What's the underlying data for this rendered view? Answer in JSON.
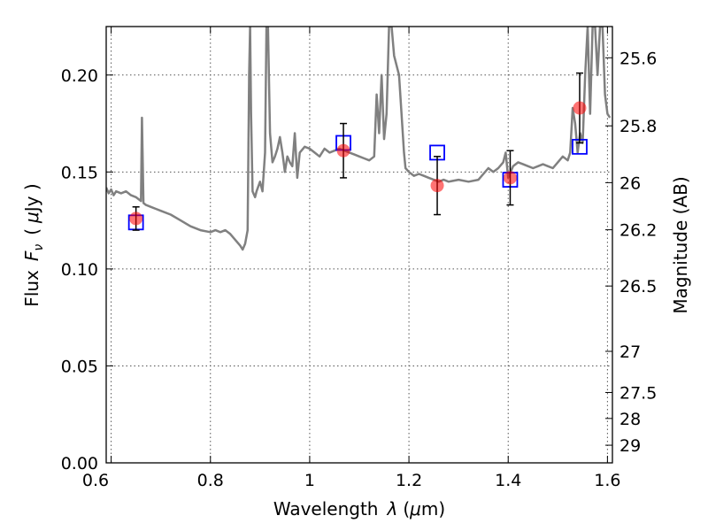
{
  "chart_data": {
    "type": "line",
    "xlabel": "Wavelength",
    "xlabel_symbol": "λ",
    "xlabel_unit_open": "(",
    "xlabel_unit_mu": "μ",
    "xlabel_unit_rest": "m)",
    "ylabel": "Flux",
    "ylabel_symbol": "F",
    "ylabel_subscript": "ν",
    "ylabel_unit_open": "(",
    "ylabel_unit_mu": "μ",
    "ylabel_unit_rest": "Jy )",
    "y2label": "Magnitude (AB)",
    "xlim": [
      0.59,
      1.61
    ],
    "ylim": [
      0.0,
      0.225
    ],
    "grid": true,
    "x_ticks": [
      {
        "value": 0.6,
        "label": ""
      },
      {
        "value": 0.8,
        "label": "0.8"
      },
      {
        "value": 1.0,
        "label": "1"
      },
      {
        "value": 1.2,
        "label": "1.2"
      },
      {
        "value": 1.4,
        "label": "1.4"
      },
      {
        "value": 1.6,
        "label": "1.6"
      }
    ],
    "x_tick_label_left": "0.6",
    "y_ticks": [
      {
        "value": 0.0,
        "label": "0.00"
      },
      {
        "value": 0.05,
        "label": "0.05"
      },
      {
        "value": 0.1,
        "label": "0.10"
      },
      {
        "value": 0.15,
        "label": "0.15"
      },
      {
        "value": 0.2,
        "label": "0.20"
      }
    ],
    "y2_ticks": [
      {
        "label": "25.6",
        "flux": 0.2089
      },
      {
        "label": "25.8",
        "flux": 0.1738
      },
      {
        "label": "26",
        "flux": 0.1445
      },
      {
        "label": "26.2",
        "flux": 0.1202
      },
      {
        "label": "26.5",
        "flux": 0.0912
      },
      {
        "label": "27",
        "flux": 0.0575
      },
      {
        "label": "27.5",
        "flux": 0.0363
      },
      {
        "label": "28",
        "flux": 0.0229
      },
      {
        "label": "29",
        "flux": 0.0091
      }
    ],
    "series": [
      {
        "type": "line",
        "color": "#808080",
        "x": [
          0.59,
          0.595,
          0.6,
          0.605,
          0.61,
          0.62,
          0.63,
          0.64,
          0.65,
          0.655,
          0.66,
          0.662,
          0.665,
          0.67,
          0.68,
          0.69,
          0.7,
          0.72,
          0.74,
          0.76,
          0.78,
          0.8,
          0.81,
          0.82,
          0.83,
          0.84,
          0.86,
          0.865,
          0.87,
          0.875,
          0.878,
          0.88,
          0.882,
          0.885,
          0.89,
          0.893,
          0.9,
          0.905,
          0.91,
          0.913,
          0.916,
          0.92,
          0.925,
          0.93,
          0.935,
          0.94,
          0.945,
          0.95,
          0.955,
          0.96,
          0.965,
          0.97,
          0.975,
          0.98,
          0.99,
          1.0,
          1.01,
          1.02,
          1.03,
          1.04,
          1.05,
          1.06,
          1.07,
          1.08,
          1.09,
          1.1,
          1.11,
          1.12,
          1.13,
          1.135,
          1.14,
          1.145,
          1.15,
          1.155,
          1.16,
          1.165,
          1.17,
          1.18,
          1.19,
          1.193,
          1.2,
          1.205,
          1.21,
          1.22,
          1.23,
          1.24,
          1.25,
          1.26,
          1.27,
          1.28,
          1.3,
          1.32,
          1.34,
          1.36,
          1.37,
          1.38,
          1.39,
          1.395,
          1.4,
          1.405,
          1.41,
          1.42,
          1.43,
          1.44,
          1.45,
          1.46,
          1.47,
          1.48,
          1.49,
          1.5,
          1.51,
          1.52,
          1.525,
          1.53,
          1.535,
          1.54,
          1.545,
          1.55,
          1.555,
          1.56,
          1.565,
          1.57,
          1.575,
          1.58,
          1.585,
          1.59,
          1.595,
          1.6,
          1.605
        ],
        "y": [
          0.142,
          0.139,
          0.141,
          0.138,
          0.14,
          0.139,
          0.14,
          0.138,
          0.137,
          0.136,
          0.135,
          0.178,
          0.134,
          0.133,
          0.132,
          0.131,
          0.13,
          0.128,
          0.125,
          0.122,
          0.12,
          0.119,
          0.12,
          0.119,
          0.12,
          0.118,
          0.112,
          0.11,
          0.113,
          0.12,
          0.2,
          0.23,
          0.18,
          0.14,
          0.137,
          0.14,
          0.145,
          0.14,
          0.16,
          0.23,
          0.23,
          0.17,
          0.155,
          0.158,
          0.162,
          0.168,
          0.16,
          0.15,
          0.158,
          0.155,
          0.153,
          0.17,
          0.147,
          0.16,
          0.163,
          0.162,
          0.16,
          0.158,
          0.162,
          0.16,
          0.161,
          0.162,
          0.161,
          0.16,
          0.159,
          0.158,
          0.157,
          0.156,
          0.158,
          0.19,
          0.17,
          0.2,
          0.167,
          0.18,
          0.23,
          0.23,
          0.21,
          0.2,
          0.16,
          0.152,
          0.15,
          0.149,
          0.148,
          0.149,
          0.148,
          0.147,
          0.146,
          0.145,
          0.146,
          0.145,
          0.146,
          0.145,
          0.146,
          0.152,
          0.15,
          0.152,
          0.155,
          0.16,
          0.147,
          0.15,
          0.153,
          0.155,
          0.154,
          0.153,
          0.152,
          0.153,
          0.154,
          0.153,
          0.152,
          0.155,
          0.158,
          0.156,
          0.16,
          0.183,
          0.175,
          0.16,
          0.17,
          0.165,
          0.2,
          0.23,
          0.18,
          0.23,
          0.23,
          0.2,
          0.23,
          0.23,
          0.19,
          0.18,
          0.178
        ]
      },
      {
        "type": "scatter",
        "marker": "open-square",
        "color": "#0000ff",
        "x": [
          0.65,
          1.068,
          1.257,
          1.404,
          1.544
        ],
        "y": [
          0.124,
          0.165,
          0.16,
          0.146,
          0.163
        ]
      },
      {
        "type": "scatter",
        "marker": "filled-circle",
        "color": "#ff0000",
        "x": [
          0.65,
          1.068,
          1.257,
          1.404,
          1.544
        ],
        "y": [
          0.126,
          0.161,
          0.143,
          0.147,
          0.183
        ],
        "yerr": [
          0.006,
          0.014,
          0.015,
          0.014,
          0.018
        ]
      }
    ]
  }
}
